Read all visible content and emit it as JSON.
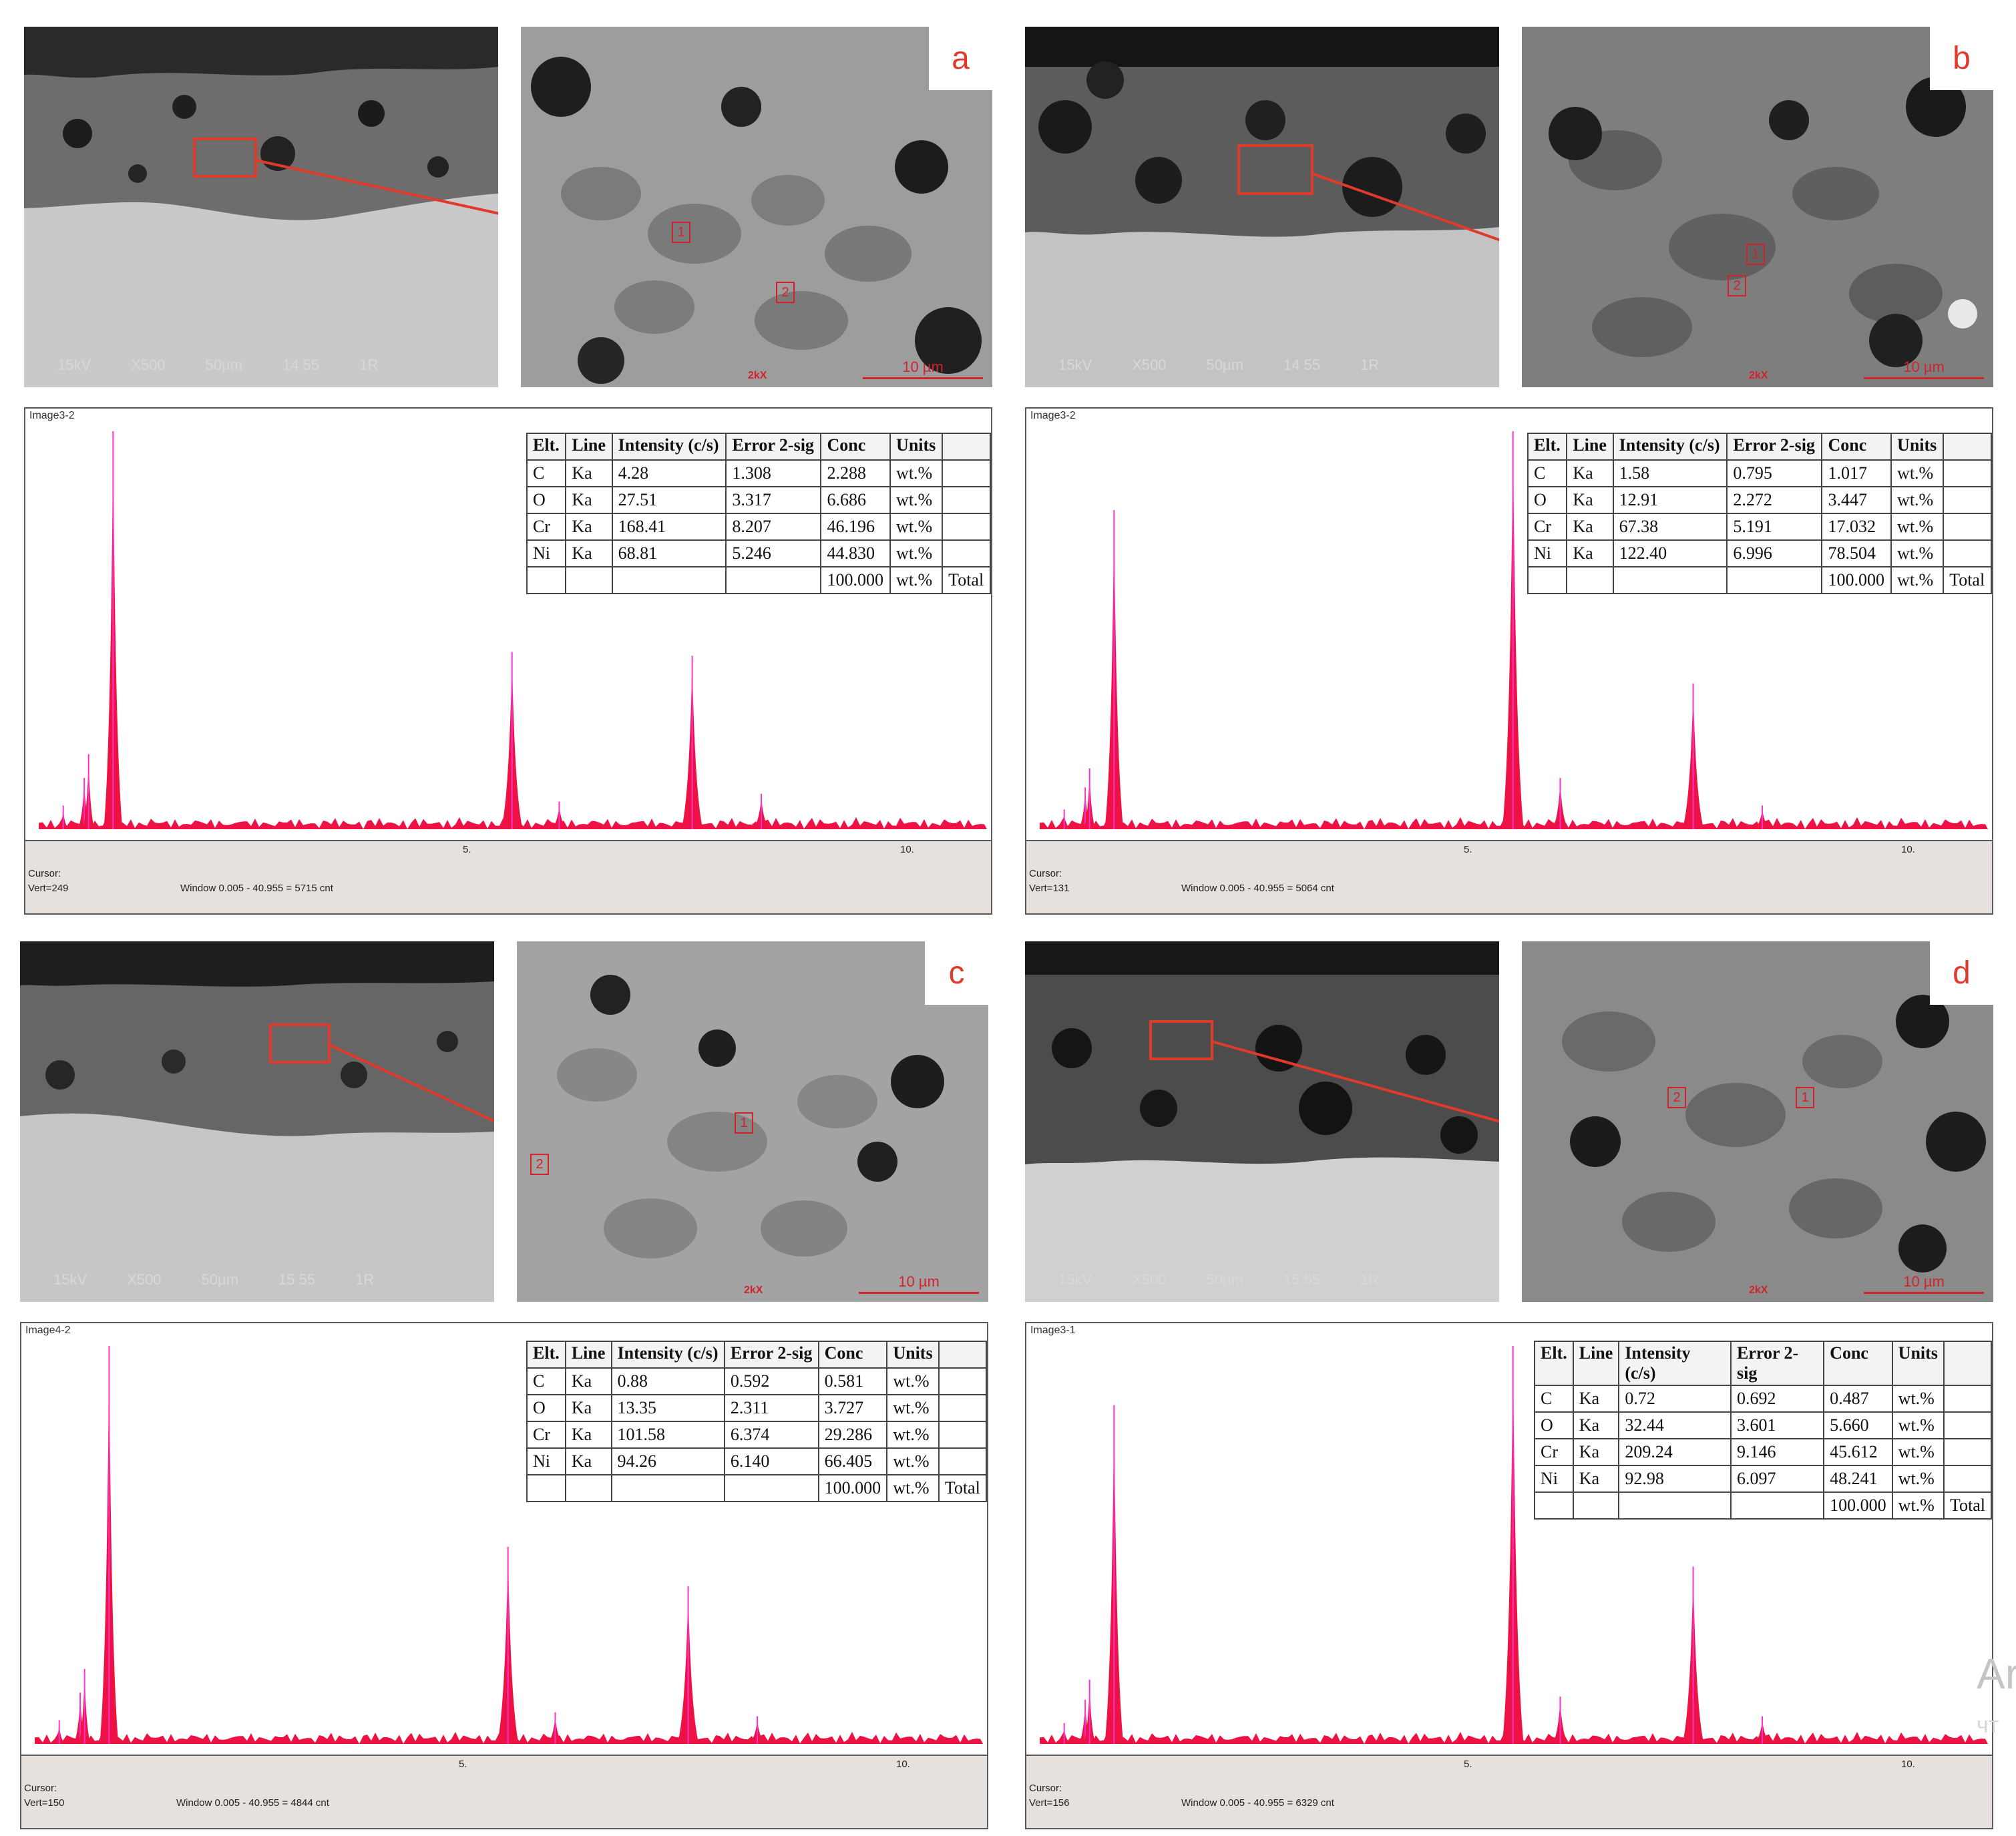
{
  "panels": [
    {
      "id": "a",
      "letter": "a",
      "sem_footer": [
        "15kV",
        "X500",
        "50µm",
        "14 55",
        "1R"
      ],
      "high_mag_tag": "2kX",
      "scale_label": "10 µm",
      "spots": [
        "1",
        "2"
      ],
      "spectrum_title": "Image3-2",
      "cursor_label": "Cursor:",
      "vert_label": "Vert=249",
      "window_label": "Window 0.005 - 40.955 = 5715 cnt",
      "axis_ticks": [
        "5.",
        "10."
      ],
      "table": {
        "headers": [
          "Elt.",
          "Line",
          "Intensity (c/s)",
          "Error 2-sig",
          "Conc",
          "Units",
          ""
        ],
        "rows": [
          [
            "C",
            "Ka",
            "4.28",
            "1.308",
            "2.288",
            "wt.%",
            ""
          ],
          [
            "O",
            "Ka",
            "27.51",
            "3.317",
            "6.686",
            "wt.%",
            ""
          ],
          [
            "Cr",
            "Ka",
            "168.41",
            "8.207",
            "46.196",
            "wt.%",
            ""
          ],
          [
            "Ni",
            "Ka",
            "68.81",
            "5.246",
            "44.830",
            "wt.%",
            ""
          ],
          [
            "",
            "",
            "",
            "",
            "100.000",
            "wt.%",
            "Total"
          ]
        ]
      },
      "peaks": {
        "ni_l": 1.0,
        "cr_ka": 0.44,
        "cr_kb": 0.06,
        "ni_ka": 0.43,
        "ni_kb": 0.08
      }
    },
    {
      "id": "b",
      "letter": "b",
      "sem_footer": [
        "15kV",
        "X500",
        "50µm",
        "14 55",
        "1R"
      ],
      "high_mag_tag": "2kX",
      "scale_label": "10 µm",
      "spots": [
        "1",
        "2"
      ],
      "spectrum_title": "Image3-2",
      "cursor_label": "Cursor:",
      "vert_label": "Vert=131",
      "window_label": "Window 0.005 - 40.955 = 5064 cnt",
      "axis_ticks": [
        "5.",
        "10."
      ],
      "table": {
        "headers": [
          "Elt.",
          "Line",
          "Intensity (c/s)",
          "Error 2-sig",
          "Conc",
          "Units",
          ""
        ],
        "rows": [
          [
            "C",
            "Ka",
            "1.58",
            "0.795",
            "1.017",
            "wt.%",
            ""
          ],
          [
            "O",
            "Ka",
            "12.91",
            "2.272",
            "3.447",
            "wt.%",
            ""
          ],
          [
            "Cr",
            "Ka",
            "67.38",
            "5.191",
            "17.032",
            "wt.%",
            ""
          ],
          [
            "Ni",
            "Ka",
            "122.40",
            "6.996",
            "78.504",
            "wt.%",
            ""
          ],
          [
            "",
            "",
            "",
            "",
            "100.000",
            "wt.%",
            "Total"
          ]
        ]
      },
      "peaks": {
        "ni_l": 0.8,
        "cr_ka": 1.0,
        "cr_kb": 0.12,
        "ni_ka": 0.36,
        "ni_kb": 0.05
      }
    },
    {
      "id": "c",
      "letter": "c",
      "sem_footer": [
        "15kV",
        "X500",
        "50µm",
        "15 55",
        "1R"
      ],
      "high_mag_tag": "2kX",
      "scale_label": "10 µm",
      "spots": [
        "1",
        "2"
      ],
      "spectrum_title": "Image4-2",
      "cursor_label": "Cursor:",
      "vert_label": "Vert=150",
      "window_label": "Window 0.005 - 40.955 = 4844 cnt",
      "axis_ticks": [
        "5.",
        "10."
      ],
      "table": {
        "headers": [
          "Elt.",
          "Line",
          "Intensity (c/s)",
          "Error 2-sig",
          "Conc",
          "Units",
          ""
        ],
        "rows": [
          [
            "C",
            "Ka",
            "0.88",
            "0.592",
            "0.581",
            "wt.%",
            ""
          ],
          [
            "O",
            "Ka",
            "13.35",
            "2.311",
            "3.727",
            "wt.%",
            ""
          ],
          [
            "Cr",
            "Ka",
            "101.58",
            "6.374",
            "29.286",
            "wt.%",
            ""
          ],
          [
            "Ni",
            "Ka",
            "94.26",
            "6.140",
            "66.405",
            "wt.%",
            ""
          ],
          [
            "",
            "",
            "",
            "",
            "100.000",
            "wt.%",
            "Total"
          ]
        ]
      },
      "peaks": {
        "ni_l": 1.0,
        "cr_ka": 0.49,
        "cr_kb": 0.07,
        "ni_ka": 0.39,
        "ni_kb": 0.06
      }
    },
    {
      "id": "d",
      "letter": "d",
      "sem_footer": [
        "15kV",
        "X500",
        "50µm",
        "15 55",
        "1R"
      ],
      "high_mag_tag": "2kX",
      "scale_label": "10 µm",
      "spots": [
        "1",
        "2"
      ],
      "spectrum_title": "Image3-1",
      "cursor_label": "Cursor:",
      "vert_label": "Vert=156",
      "window_label": "Window 0.005 - 40.955 = 6329 cnt",
      "axis_ticks": [
        "5.",
        "10."
      ],
      "table": {
        "headers": [
          "Elt.",
          "Line",
          "Intensity (c/s)",
          "Error 2-sig",
          "Conc",
          "Units",
          ""
        ],
        "rows": [
          [
            "C",
            "Ka",
            "0.72",
            "0.692",
            "0.487",
            "wt.%",
            ""
          ],
          [
            "O",
            "Ka",
            "32.44",
            "3.601",
            "5.660",
            "wt.%",
            ""
          ],
          [
            "Cr",
            "Ka",
            "209.24",
            "9.146",
            "45.612",
            "wt.%",
            ""
          ],
          [
            "Ni",
            "Ka",
            "92.98",
            "6.097",
            "48.241",
            "wt.%",
            ""
          ],
          [
            "",
            "",
            "",
            "",
            "100.000",
            "wt.%",
            "Total"
          ]
        ]
      },
      "peaks": {
        "ni_l": 0.85,
        "cr_ka": 1.0,
        "cr_kb": 0.11,
        "ni_ka": 0.44,
        "ni_kb": 0.06
      }
    }
  ],
  "ghost_text": [
    "Ar",
    "чт"
  ],
  "colors": {
    "peak": "#ee1144",
    "marker": "#ff33cc",
    "arrow": "#e03a2b",
    "letter": "#e03a2b"
  }
}
